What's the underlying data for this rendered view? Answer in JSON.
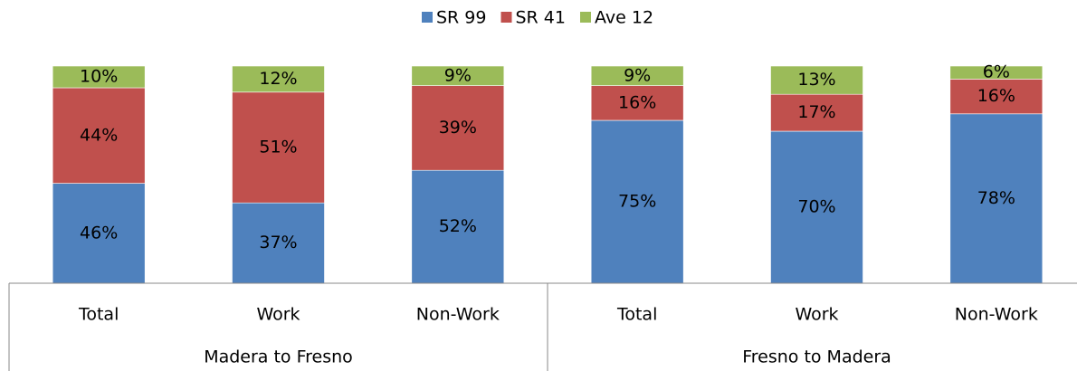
{
  "chart_data": {
    "type": "stacked_bar",
    "categories": [
      "Total",
      "Work",
      "Non-Work",
      "Total",
      "Work",
      "Non-Work"
    ],
    "groups": [
      "Madera to Fresno",
      "Fresno to Madera"
    ],
    "series": [
      {
        "name": "SR 99",
        "color": "#4f81bd",
        "values": [
          46,
          37,
          52,
          75,
          70,
          78
        ],
        "value_labels": [
          "46%",
          "37%",
          "52%",
          "75%",
          "70%",
          "78%"
        ]
      },
      {
        "name": "SR 41",
        "color": "#c0504d",
        "values": [
          44,
          51,
          39,
          16,
          17,
          16
        ],
        "value_labels": [
          "44%",
          "51%",
          "39%",
          "16%",
          "17%",
          "16%"
        ]
      },
      {
        "name": "Ave 12",
        "color": "#9bbb59",
        "values": [
          10,
          12,
          9,
          9,
          13,
          6
        ],
        "value_labels": [
          "10%",
          "12%",
          "9%",
          "9%",
          "13%",
          "6%"
        ]
      }
    ],
    "ylim": [
      0,
      100
    ],
    "legend": "top"
  }
}
